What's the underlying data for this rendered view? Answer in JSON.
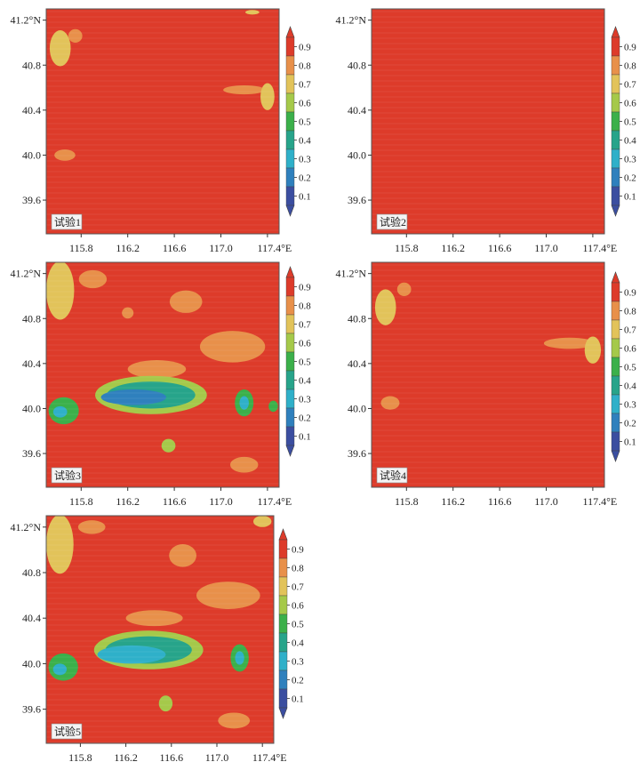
{
  "chart_data": {
    "type": "heatmap",
    "colorbar": {
      "ticks": [
        0.1,
        0.2,
        0.3,
        0.4,
        0.5,
        0.6,
        0.7,
        0.8,
        0.9
      ],
      "tick_labels": [
        "0.1",
        "0.2",
        "0.3",
        "0.4",
        "0.5",
        "0.6",
        "0.7",
        "0.8",
        "0.9"
      ],
      "range": [
        0.05,
        0.95
      ],
      "colors": [
        "#3b4ea0",
        "#2f80bd",
        "#2fb0c9",
        "#27a48a",
        "#3bb04a",
        "#a5c94a",
        "#e2c35a",
        "#e8904a",
        "#dd3b2a"
      ]
    },
    "xlim": [
      115.5,
      117.5
    ],
    "ylim": [
      39.3,
      41.3
    ],
    "x_ticks": [
      115.8,
      116.2,
      116.6,
      117.0,
      117.4
    ],
    "x_tick_labels": [
      "115.8",
      "116.2",
      "116.6",
      "117.0",
      "117.4°E"
    ],
    "y_ticks": [
      39.6,
      40.0,
      40.4,
      40.8,
      41.2
    ],
    "y_tick_labels": [
      "39.6",
      "40.0",
      "40.4",
      "40.8",
      "41.2°N"
    ],
    "background_value": 0.95,
    "panels": [
      {
        "label": "试验1",
        "regions": [
          {
            "lon": 115.62,
            "lat": 40.95,
            "rx": 0.09,
            "ry": 0.16,
            "value": 0.7
          },
          {
            "lon": 115.75,
            "lat": 41.06,
            "rx": 0.06,
            "ry": 0.06,
            "value": 0.75
          },
          {
            "lon": 115.66,
            "lat": 40.0,
            "rx": 0.09,
            "ry": 0.05,
            "value": 0.8
          },
          {
            "lon": 117.2,
            "lat": 40.58,
            "rx": 0.18,
            "ry": 0.04,
            "value": 0.8
          },
          {
            "lon": 117.4,
            "lat": 40.52,
            "rx": 0.06,
            "ry": 0.12,
            "value": 0.65
          },
          {
            "lon": 117.27,
            "lat": 41.27,
            "rx": 0.06,
            "ry": 0.02,
            "value": 0.7
          }
        ]
      },
      {
        "label": "试验2",
        "regions": []
      },
      {
        "label": "试验3",
        "regions": [
          {
            "lon": 115.62,
            "lat": 41.05,
            "rx": 0.12,
            "ry": 0.26,
            "value": 0.7
          },
          {
            "lon": 115.9,
            "lat": 41.15,
            "rx": 0.12,
            "ry": 0.08,
            "value": 0.75
          },
          {
            "lon": 116.7,
            "lat": 40.95,
            "rx": 0.14,
            "ry": 0.1,
            "value": 0.75
          },
          {
            "lon": 117.1,
            "lat": 40.55,
            "rx": 0.28,
            "ry": 0.14,
            "value": 0.8
          },
          {
            "lon": 116.2,
            "lat": 40.85,
            "rx": 0.05,
            "ry": 0.05,
            "value": 0.8
          },
          {
            "lon": 116.45,
            "lat": 40.35,
            "rx": 0.25,
            "ry": 0.08,
            "value": 0.75
          },
          {
            "lon": 116.4,
            "lat": 40.12,
            "rx": 0.48,
            "ry": 0.17,
            "value": 0.55
          },
          {
            "lon": 116.4,
            "lat": 40.12,
            "rx": 0.38,
            "ry": 0.12,
            "value": 0.4
          },
          {
            "lon": 116.25,
            "lat": 40.1,
            "rx": 0.28,
            "ry": 0.07,
            "value": 0.2
          },
          {
            "lon": 115.65,
            "lat": 39.98,
            "rx": 0.13,
            "ry": 0.12,
            "value": 0.45
          },
          {
            "lon": 115.62,
            "lat": 39.97,
            "rx": 0.06,
            "ry": 0.05,
            "value": 0.25
          },
          {
            "lon": 117.2,
            "lat": 40.05,
            "rx": 0.08,
            "ry": 0.12,
            "value": 0.5
          },
          {
            "lon": 117.2,
            "lat": 40.05,
            "rx": 0.04,
            "ry": 0.06,
            "value": 0.25
          },
          {
            "lon": 117.45,
            "lat": 40.02,
            "rx": 0.04,
            "ry": 0.05,
            "value": 0.5
          },
          {
            "lon": 116.55,
            "lat": 39.67,
            "rx": 0.06,
            "ry": 0.06,
            "value": 0.55
          },
          {
            "lon": 117.2,
            "lat": 39.5,
            "rx": 0.12,
            "ry": 0.07,
            "value": 0.8
          }
        ]
      },
      {
        "label": "试验4",
        "regions": [
          {
            "lon": 115.62,
            "lat": 40.9,
            "rx": 0.09,
            "ry": 0.16,
            "value": 0.7
          },
          {
            "lon": 115.78,
            "lat": 41.06,
            "rx": 0.06,
            "ry": 0.06,
            "value": 0.75
          },
          {
            "lon": 115.66,
            "lat": 40.05,
            "rx": 0.08,
            "ry": 0.06,
            "value": 0.8
          },
          {
            "lon": 117.2,
            "lat": 40.58,
            "rx": 0.22,
            "ry": 0.05,
            "value": 0.8
          },
          {
            "lon": 117.4,
            "lat": 40.52,
            "rx": 0.07,
            "ry": 0.12,
            "value": 0.65
          }
        ]
      },
      {
        "label": "试验5",
        "regions": [
          {
            "lon": 115.62,
            "lat": 41.05,
            "rx": 0.12,
            "ry": 0.26,
            "value": 0.7
          },
          {
            "lon": 115.9,
            "lat": 41.2,
            "rx": 0.12,
            "ry": 0.06,
            "value": 0.75
          },
          {
            "lon": 116.7,
            "lat": 40.95,
            "rx": 0.12,
            "ry": 0.1,
            "value": 0.75
          },
          {
            "lon": 117.1,
            "lat": 40.6,
            "rx": 0.28,
            "ry": 0.12,
            "value": 0.8
          },
          {
            "lon": 116.45,
            "lat": 40.4,
            "rx": 0.25,
            "ry": 0.07,
            "value": 0.75
          },
          {
            "lon": 116.4,
            "lat": 40.12,
            "rx": 0.48,
            "ry": 0.17,
            "value": 0.55
          },
          {
            "lon": 116.4,
            "lat": 40.12,
            "rx": 0.38,
            "ry": 0.12,
            "value": 0.4
          },
          {
            "lon": 116.25,
            "lat": 40.08,
            "rx": 0.3,
            "ry": 0.08,
            "value": 0.25
          },
          {
            "lon": 115.65,
            "lat": 39.97,
            "rx": 0.13,
            "ry": 0.12,
            "value": 0.45
          },
          {
            "lon": 115.62,
            "lat": 39.95,
            "rx": 0.06,
            "ry": 0.05,
            "value": 0.25
          },
          {
            "lon": 117.2,
            "lat": 40.05,
            "rx": 0.08,
            "ry": 0.12,
            "value": 0.5
          },
          {
            "lon": 117.2,
            "lat": 40.05,
            "rx": 0.04,
            "ry": 0.06,
            "value": 0.25
          },
          {
            "lon": 116.55,
            "lat": 39.65,
            "rx": 0.06,
            "ry": 0.07,
            "value": 0.55
          },
          {
            "lon": 117.15,
            "lat": 39.5,
            "rx": 0.14,
            "ry": 0.07,
            "value": 0.8
          },
          {
            "lon": 117.4,
            "lat": 41.25,
            "rx": 0.08,
            "ry": 0.05,
            "value": 0.7
          }
        ]
      }
    ]
  }
}
